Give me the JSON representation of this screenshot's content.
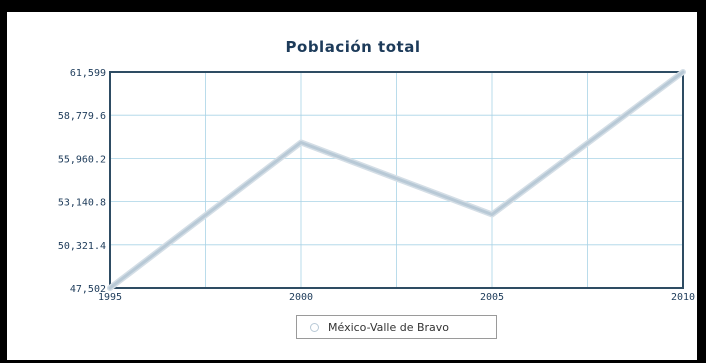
{
  "chart_data": {
    "type": "line",
    "title": "Población total",
    "categories": [
      "1995",
      "2000",
      "2005",
      "2010"
    ],
    "series": [
      {
        "name": "México-Valle de Bravo",
        "values": [
          47502,
          57000,
          52300,
          61599
        ]
      }
    ],
    "ylim": [
      47502,
      61599
    ],
    "yticks": [
      "61,599",
      "58,779.6",
      "55,960.2",
      "53,140.8",
      "50,321.4",
      "47,502"
    ],
    "grid": true,
    "legend_position": "bottom-center",
    "colors": {
      "line": "#b8c9d6",
      "axis": "#2e4c63",
      "grid": "#a9d3e6",
      "text": "#1d3b5a"
    }
  }
}
